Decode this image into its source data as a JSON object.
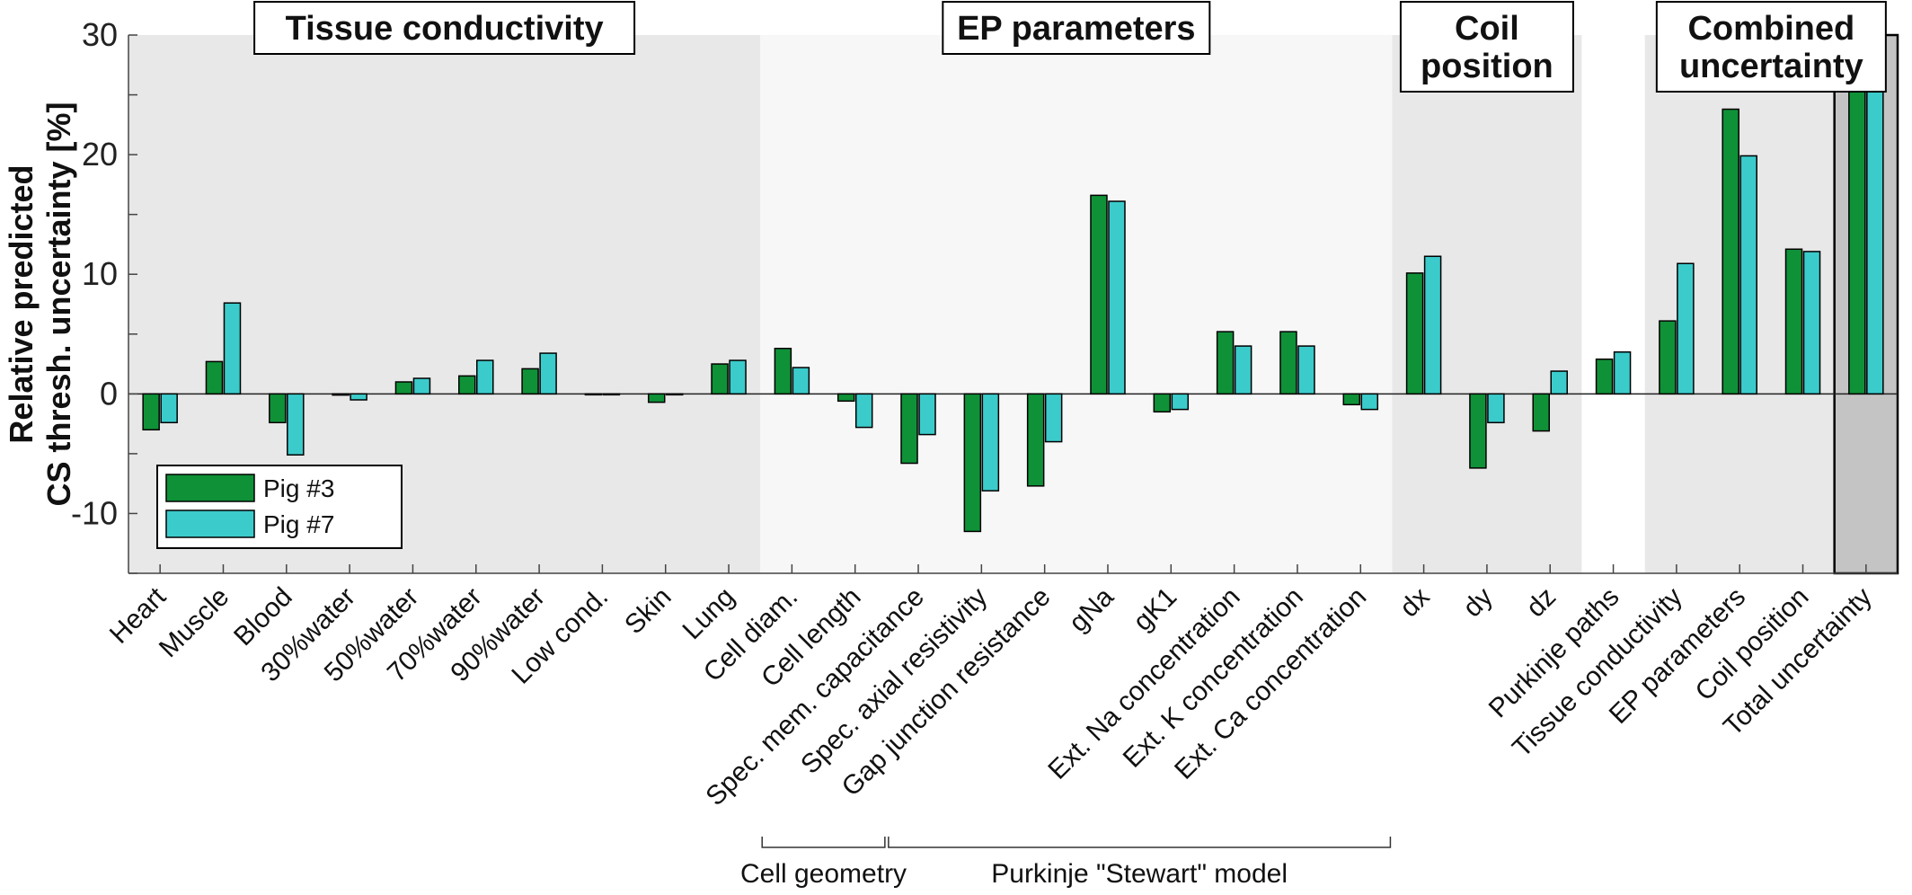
{
  "chart_data": {
    "type": "bar",
    "ylabel": [
      "Relative predicted",
      "CS thresh. uncertainty [%]"
    ],
    "ylim": [
      -15,
      30
    ],
    "yticks": [
      -10,
      0,
      10,
      20,
      30
    ],
    "categories": [
      "Heart",
      "Muscle",
      "Blood",
      "30%water",
      "50%water",
      "70%water",
      "90%water",
      "Low cond.",
      "Skin",
      "Lung",
      "Cell diam.",
      "Cell length",
      "Spec. mem. capacitance",
      "Spec. axial resistivity",
      "Gap junction resistance",
      "gNa",
      "gK1",
      "Ext. Na concentration",
      "Ext. K concentration",
      "Ext. Ca concentration",
      "dx",
      "dy",
      "dz",
      "Purkinje paths",
      "Tissue conductivity",
      "EP parameters",
      "Coil position",
      "Total uncertainty"
    ],
    "series": [
      {
        "name": "Pig #3",
        "color": "#0f9138",
        "values": [
          -3.0,
          2.7,
          -2.4,
          -0.1,
          1.0,
          1.5,
          2.1,
          0.0,
          -0.7,
          2.5,
          3.8,
          -0.6,
          -5.8,
          -11.5,
          -7.7,
          16.6,
          -1.5,
          5.2,
          5.2,
          -0.9,
          10.1,
          -6.2,
          -3.1,
          2.9,
          6.1,
          23.8,
          12.1,
          27.4
        ]
      },
      {
        "name": "Pig #7",
        "color": "#3ccbcb",
        "values": [
          -2.4,
          7.6,
          -5.1,
          -0.5,
          1.3,
          2.8,
          3.4,
          0.0,
          0.0,
          2.8,
          2.2,
          -2.8,
          -3.4,
          -8.1,
          -4.0,
          16.1,
          -1.3,
          4.0,
          4.0,
          -1.3,
          11.5,
          -2.4,
          1.9,
          3.5,
          10.9,
          19.9,
          11.9,
          25.6
        ]
      }
    ],
    "sections": [
      {
        "title": [
          "Tissue conductivity"
        ],
        "from": 0,
        "to": 9,
        "shade": "#e8e8e8"
      },
      {
        "title": [
          "EP parameters"
        ],
        "from": 10,
        "to": 19,
        "shade": "#f7f7f7"
      },
      {
        "title": [
          "Coil",
          "position"
        ],
        "from": 20,
        "to": 22,
        "shade": "#e8e8e8"
      },
      {
        "title": [
          "Combined",
          "uncertainty"
        ],
        "from": 24,
        "to": 27,
        "shade": "#e8e8e8"
      }
    ],
    "highlight": {
      "index": 27,
      "shade": "#c4c4c4"
    },
    "groups": [
      {
        "label": "Cell geometry",
        "from": 10,
        "to": 11
      },
      {
        "label": "Purkinje \"Stewart\" model",
        "from": 12,
        "to": 19
      }
    ],
    "legend": {
      "position": "bottom-left"
    },
    "grid": false
  }
}
